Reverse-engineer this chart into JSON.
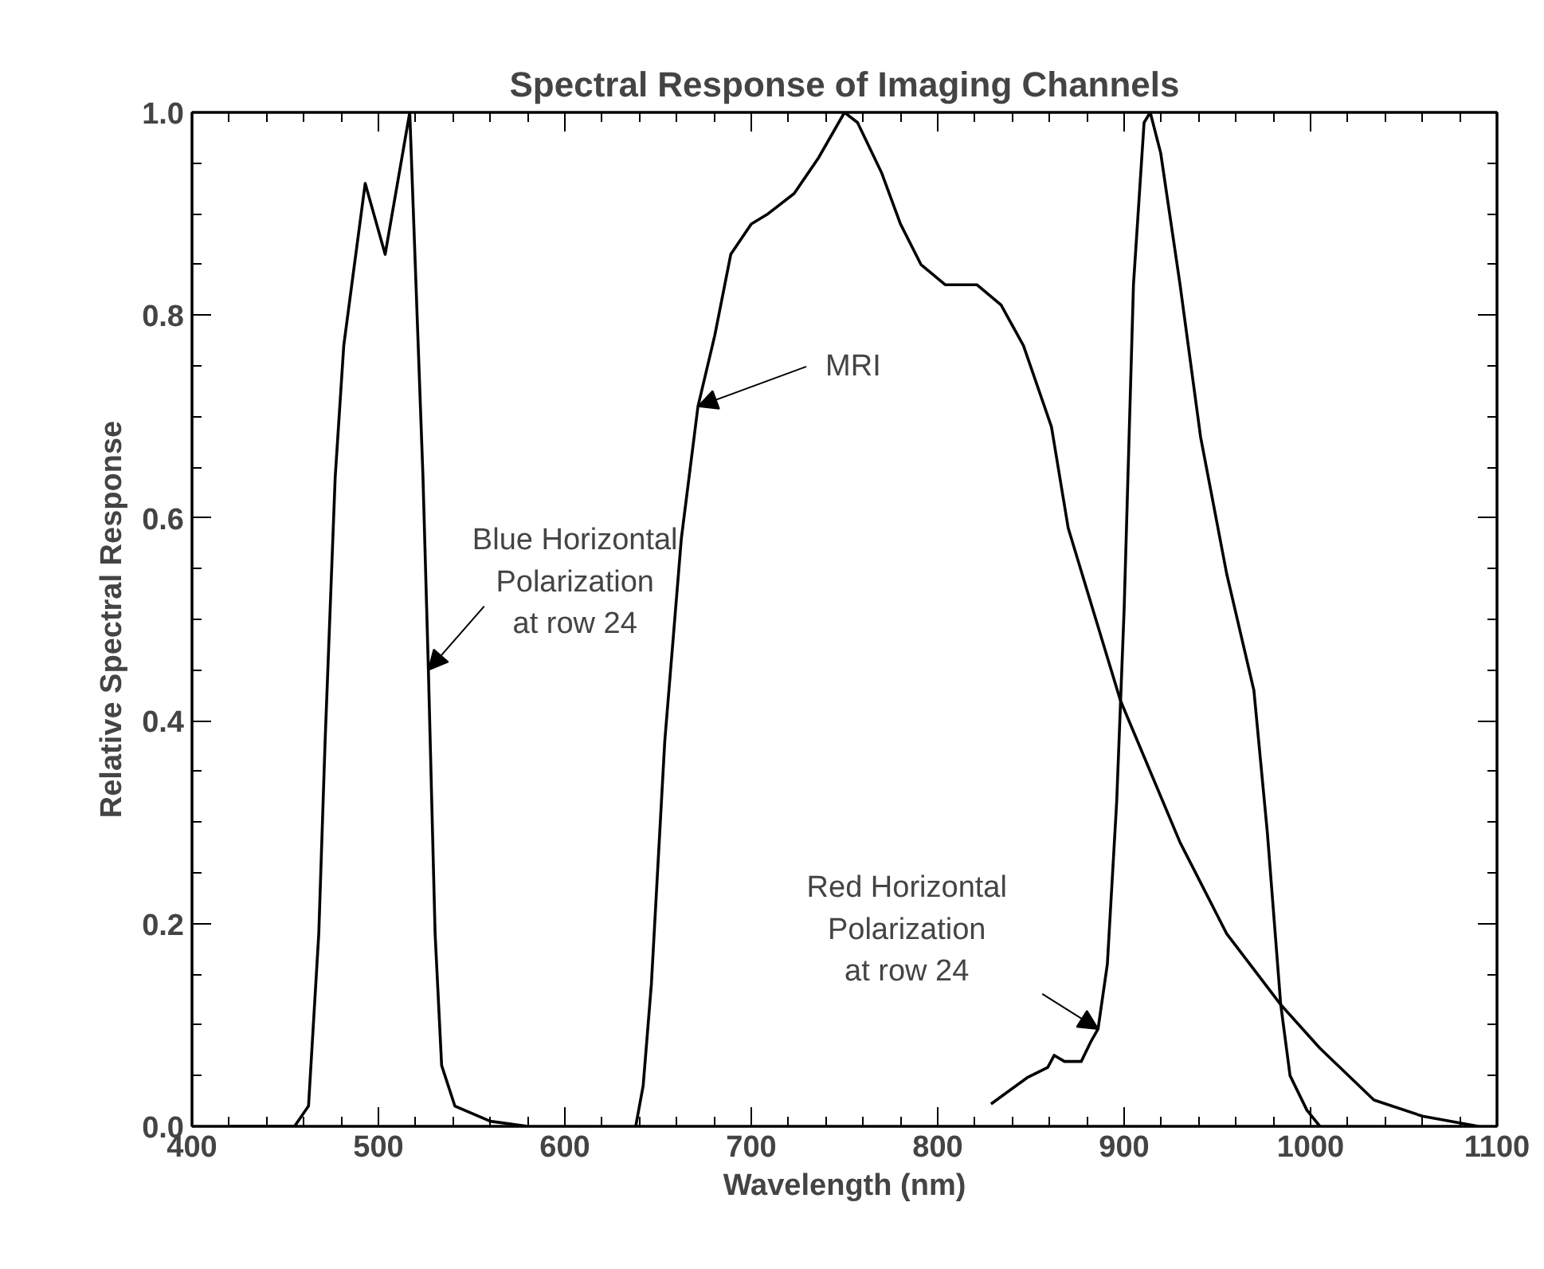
{
  "chart_data": {
    "type": "line",
    "title": "Spectral Response of Imaging Channels",
    "xlabel": "Wavelength (nm)",
    "ylabel": "Relative Spectral Response",
    "xlim": [
      400,
      1100
    ],
    "ylim": [
      0,
      1.0
    ],
    "xticks": [
      400,
      500,
      600,
      700,
      800,
      900,
      1000,
      1100
    ],
    "yticks": [
      {
        "value": 0,
        "label": "0.0"
      },
      {
        "value": 0.2,
        "label": "0.2"
      },
      {
        "value": 0.4,
        "label": "0.4"
      },
      {
        "value": 0.6,
        "label": "0.6"
      },
      {
        "value": 0.8,
        "label": "0.8"
      },
      {
        "value": 1.0,
        "label": "1.0"
      }
    ],
    "grid": false,
    "marker": "none",
    "line_style": "solid",
    "series": [
      {
        "color": "#000000",
        "x": [
          420,
          455,
          462.5,
          468,
          471.4,
          476.8,
          481.4,
          485.7,
          492.9,
          503.6,
          516.8,
          523.9,
          526.8,
          530.4,
          533.9,
          541,
          560,
          580
        ],
        "values": [
          0,
          0,
          0.02,
          0.19,
          0.38,
          0.64,
          0.77,
          0.83,
          0.93,
          0.86,
          1.0,
          0.64,
          0.45,
          0.19,
          0.06,
          0.02,
          0.005,
          0
        ]
      },
      {
        "color": "#000000",
        "x": [
          638,
          642,
          646.4,
          653.6,
          662.5,
          671.4,
          680.4,
          689,
          700,
          709,
          723,
          736,
          750,
          757,
          770,
          780,
          791,
          804,
          821,
          834,
          846,
          861,
          870,
          898,
          930,
          955,
          984,
          1005,
          1034,
          1060,
          1090
        ],
        "values": [
          0,
          0.04,
          0.14,
          0.38,
          0.58,
          0.71,
          0.78,
          0.86,
          0.89,
          0.9,
          0.92,
          0.955,
          1.0,
          0.99,
          0.94,
          0.89,
          0.85,
          0.83,
          0.83,
          0.81,
          0.77,
          0.69,
          0.59,
          0.42,
          0.28,
          0.19,
          0.12,
          0.077,
          0.026,
          0.01,
          0
        ]
      },
      {
        "color": "#000000",
        "x": [
          828.6,
          848,
          859,
          862.5,
          868,
          877,
          882,
          886,
          891,
          896,
          900,
          905,
          910.7,
          914,
          919.6,
          930,
          941,
          955,
          969.6,
          976.8,
          984,
          989,
          998,
          1005
        ],
        "values": [
          0.022,
          0.048,
          0.058,
          0.07,
          0.064,
          0.064,
          0.083,
          0.096,
          0.16,
          0.32,
          0.51,
          0.83,
          0.99,
          1.0,
          0.96,
          0.83,
          0.68,
          0.545,
          0.43,
          0.29,
          0.12,
          0.05,
          0.016,
          0
        ]
      }
    ],
    "annotations": [
      {
        "text": "Blue Horizontal\nPolarization\nat row 24",
        "x": 526.8,
        "y": 0.45
      },
      {
        "text": "MRI",
        "x": 671.4,
        "y": 0.71
      },
      {
        "text": "Red Horizontal\nPolarization\nat row 24",
        "x": 886,
        "y": 0.096
      }
    ]
  }
}
